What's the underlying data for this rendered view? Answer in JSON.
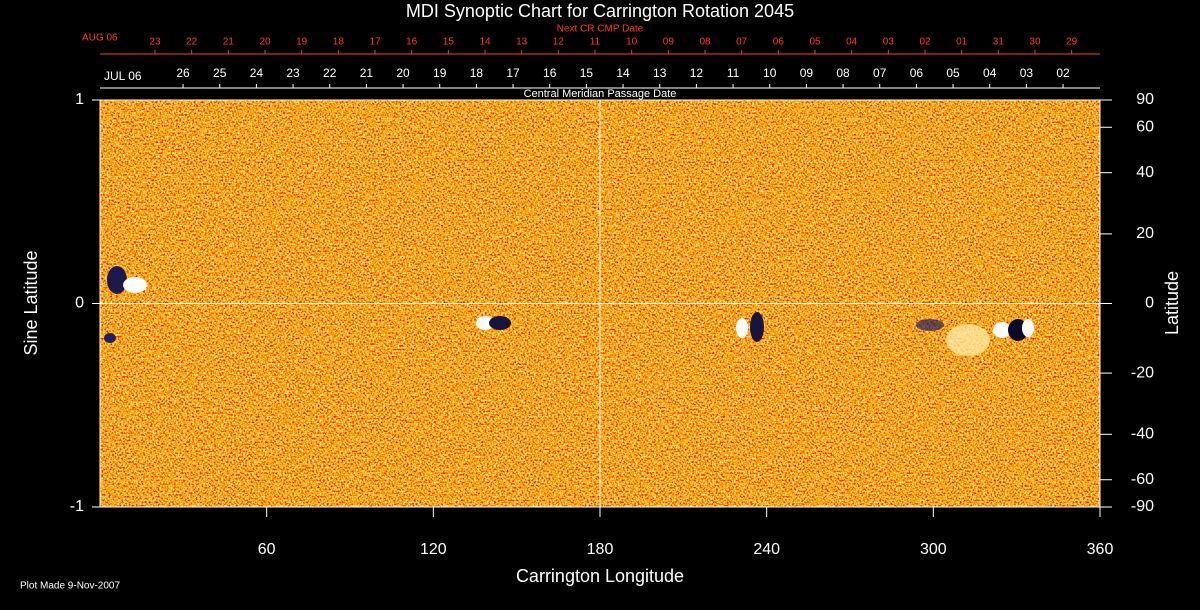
{
  "chart_data": {
    "type": "synoptic-map",
    "title": "MDI Synoptic Chart for Carrington Rotation 2045",
    "x_label": "Carrington Longitude",
    "y_label": "Sine Latitude",
    "y2_label": "Latitude",
    "xlim": [
      0,
      360
    ],
    "xticks": [
      60,
      120,
      180,
      240,
      300,
      360
    ],
    "ylim": [
      -1,
      1
    ],
    "yticks": [
      -1,
      0,
      1
    ],
    "y2lim": [
      -90,
      90
    ],
    "y2scale": "sine",
    "y2ticks": [
      90,
      60,
      40,
      20,
      0,
      -20,
      -40,
      -60,
      -90
    ],
    "top_axes": [
      {
        "title": "Next CR CMP Date",
        "start_label": "AUG 06",
        "color": "#ff3c1e",
        "labels": [
          "23",
          "22",
          "21",
          "20",
          "19",
          "18",
          "17",
          "16",
          "15",
          "14",
          "13",
          "12",
          "11",
          "10",
          "09",
          "08",
          "07",
          "06",
          "05",
          "04",
          "03",
          "02",
          "01",
          "31",
          "30",
          "29"
        ],
        "x": [
          19.8,
          33.0,
          46.2,
          59.4,
          72.6,
          85.8,
          99.0,
          112.2,
          125.4,
          138.6,
          151.8,
          165.0,
          178.2,
          191.4,
          204.6,
          217.8,
          231.0,
          244.2,
          257.4,
          270.6,
          283.8,
          297.0,
          310.2,
          323.4,
          336.6,
          349.8
        ]
      },
      {
        "title": "Central Meridian Passage Date",
        "start_label": "JUL 06",
        "color": "#ffffff",
        "labels": [
          "26",
          "25",
          "24",
          "23",
          "22",
          "21",
          "20",
          "19",
          "18",
          "17",
          "16",
          "15",
          "14",
          "13",
          "12",
          "11",
          "10",
          "09",
          "08",
          "07",
          "06",
          "05",
          "04",
          "03",
          "02"
        ],
        "x": [
          29.9,
          43.1,
          56.3,
          69.5,
          82.7,
          95.9,
          109.1,
          122.3,
          135.5,
          148.7,
          161.9,
          175.1,
          188.3,
          201.5,
          214.7,
          227.9,
          241.1,
          254.3,
          267.5,
          280.7,
          293.9,
          307.1,
          320.3,
          333.5,
          346.7
        ]
      }
    ],
    "footer": "Plot Made  9-Nov-2007"
  }
}
